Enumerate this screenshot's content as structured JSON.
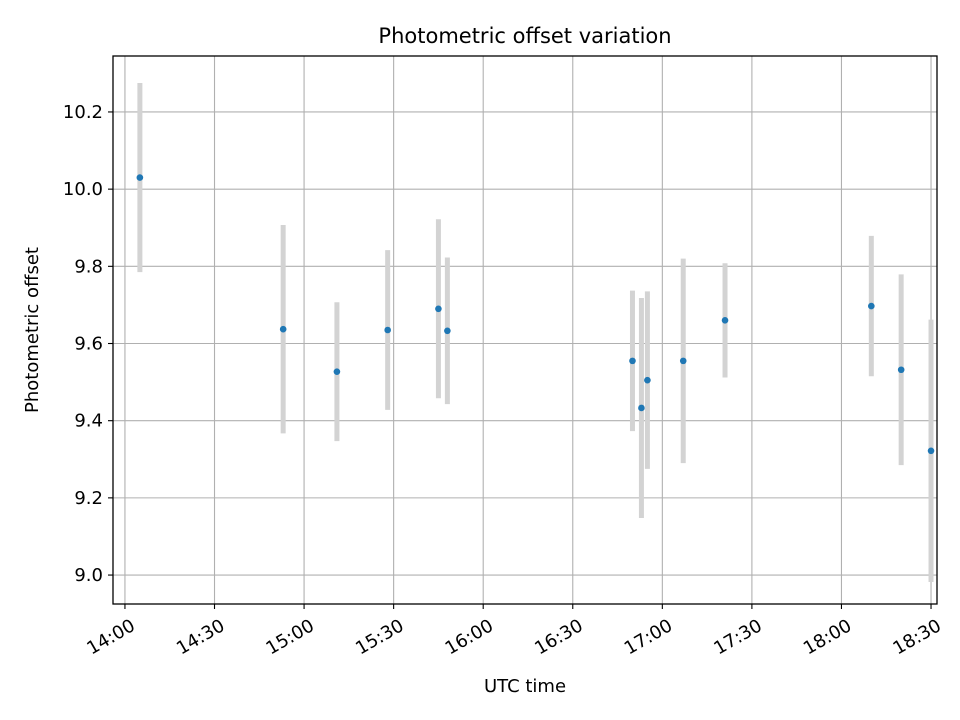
{
  "chart_data": {
    "type": "scatter",
    "title": "Photometric offset variation",
    "xlabel": "UTC time",
    "ylabel": "Photometric offset",
    "x_ticks": [
      "14:00",
      "14:30",
      "15:00",
      "15:30",
      "16:00",
      "16:30",
      "17:00",
      "17:30",
      "18:00",
      "18:30"
    ],
    "y_ticks": [
      "9.0",
      "9.2",
      "9.4",
      "9.6",
      "9.8",
      "10.0",
      "10.2"
    ],
    "xlim": [
      "13:56",
      "18:32"
    ],
    "ylim": [
      8.925,
      10.345
    ],
    "grid": true,
    "colors": {
      "marker": "#1f77b4",
      "errorbar": "#d3d3d3",
      "grid": "#b0b0b0"
    },
    "points": [
      {
        "x": "14:05",
        "y": 10.03,
        "err": 0.245
      },
      {
        "x": "14:53",
        "y": 9.637,
        "err": 0.27
      },
      {
        "x": "15:11",
        "y": 9.527,
        "err": 0.18
      },
      {
        "x": "15:28",
        "y": 9.635,
        "err": 0.207
      },
      {
        "x": "15:45",
        "y": 9.69,
        "err": 0.232
      },
      {
        "x": "15:48",
        "y": 9.633,
        "err": 0.19
      },
      {
        "x": "16:50",
        "y": 9.555,
        "err": 0.182
      },
      {
        "x": "16:53",
        "y": 9.433,
        "err": 0.285
      },
      {
        "x": "16:55",
        "y": 9.505,
        "err": 0.23
      },
      {
        "x": "17:07",
        "y": 9.555,
        "err": 0.265
      },
      {
        "x": "17:21",
        "y": 9.66,
        "err": 0.148
      },
      {
        "x": "18:10",
        "y": 9.697,
        "err": 0.182
      },
      {
        "x": "18:20",
        "y": 9.532,
        "err": 0.247
      },
      {
        "x": "18:30",
        "y": 9.322,
        "err": 0.34
      }
    ]
  }
}
